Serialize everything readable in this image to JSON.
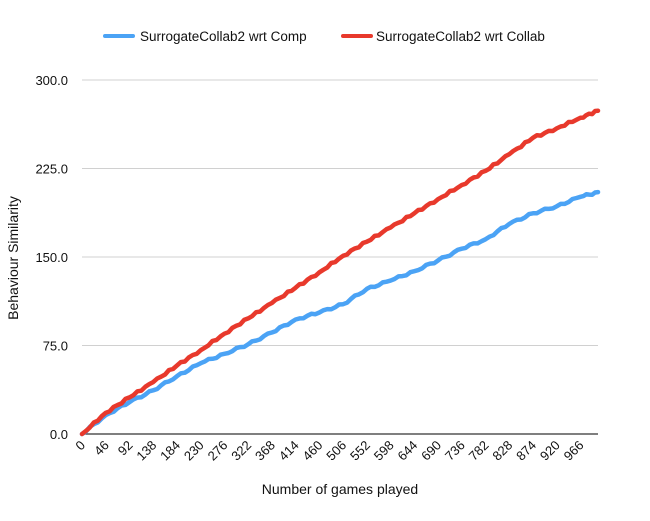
{
  "chart_data": {
    "type": "line",
    "title": "",
    "xlabel": "Number of games played",
    "ylabel": "Behaviour Similarity",
    "x_tick_labels": [
      "0",
      "46",
      "92",
      "138",
      "184",
      "230",
      "276",
      "322",
      "368",
      "414",
      "460",
      "506",
      "552",
      "598",
      "644",
      "690",
      "736",
      "782",
      "828",
      "874",
      "920",
      "966"
    ],
    "xlim": [
      0,
      1000
    ],
    "ylim": [
      0,
      300
    ],
    "y_ticks": [
      0,
      75,
      150,
      225,
      300
    ],
    "y_tick_labels": [
      "0.0",
      "75.0",
      "150.0",
      "225.0",
      "300.0"
    ],
    "grid": "horizontal",
    "legend_position": "top",
    "x": [
      0,
      46,
      92,
      138,
      184,
      230,
      276,
      322,
      368,
      414,
      460,
      506,
      552,
      598,
      644,
      690,
      736,
      782,
      828,
      874,
      920,
      966,
      1000
    ],
    "series": [
      {
        "name": "SurrogateCollab2 wrt Comp",
        "color": "#4ba3f5",
        "values": [
          0,
          16,
          27,
          37,
          49,
          60,
          68,
          76,
          86,
          97,
          103,
          110,
          123,
          130,
          138,
          147,
          157,
          165,
          178,
          187,
          193,
          201,
          205
        ]
      },
      {
        "name": "SurrogateCollab2 wrt Collab",
        "color": "#e8392c",
        "values": [
          0,
          18,
          31,
          44,
          58,
          71,
          85,
          98,
          111,
          124,
          137,
          151,
          163,
          175,
          187,
          199,
          211,
          223,
          237,
          251,
          259,
          268,
          274
        ]
      }
    ]
  }
}
